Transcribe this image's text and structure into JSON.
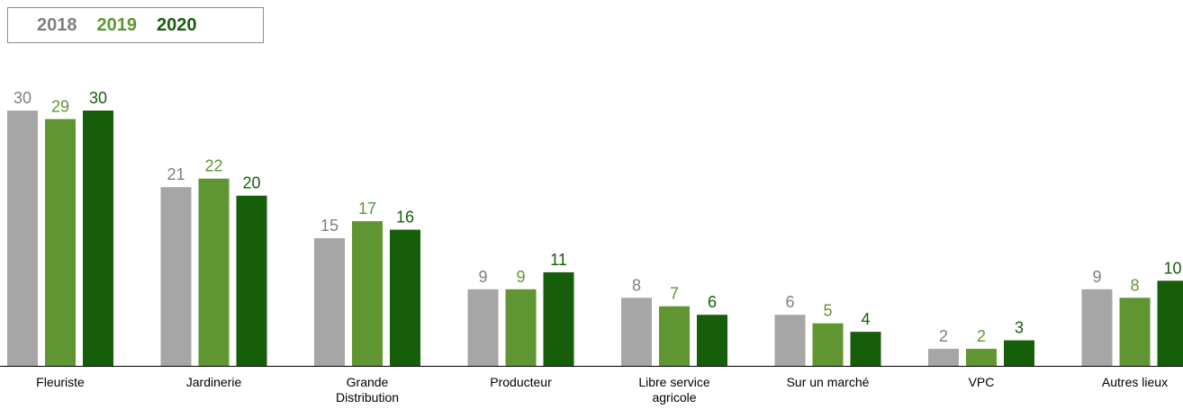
{
  "colors": {
    "2018": "#a6a6a6",
    "2019": "#5f9632",
    "2020": "#175e0a",
    "axis": "#000000"
  },
  "legend": {
    "items": [
      {
        "label": "2018",
        "color": "#808080"
      },
      {
        "label": "2019",
        "color": "#5f9632"
      },
      {
        "label": "2020",
        "color": "#175e0a"
      }
    ]
  },
  "chart_data": {
    "type": "bar",
    "title": "",
    "xlabel": "",
    "ylabel": "",
    "ylim": [
      0,
      30
    ],
    "legend_position": "top-left",
    "grid": false,
    "categories": [
      [
        "Fleuriste"
      ],
      [
        "Jardinerie"
      ],
      [
        "Grande",
        "Distribution"
      ],
      [
        "Producteur"
      ],
      [
        "Libre service",
        "agricole"
      ],
      [
        "Sur un marché"
      ],
      [
        "VPC"
      ],
      [
        "Autres lieux"
      ]
    ],
    "series": [
      {
        "name": "2018",
        "values": [
          30,
          21,
          15,
          9,
          8,
          6,
          2,
          9
        ]
      },
      {
        "name": "2019",
        "values": [
          29,
          22,
          17,
          9,
          7,
          5,
          2,
          8
        ]
      },
      {
        "name": "2020",
        "values": [
          30,
          20,
          16,
          11,
          6,
          4,
          3,
          10
        ]
      }
    ]
  }
}
